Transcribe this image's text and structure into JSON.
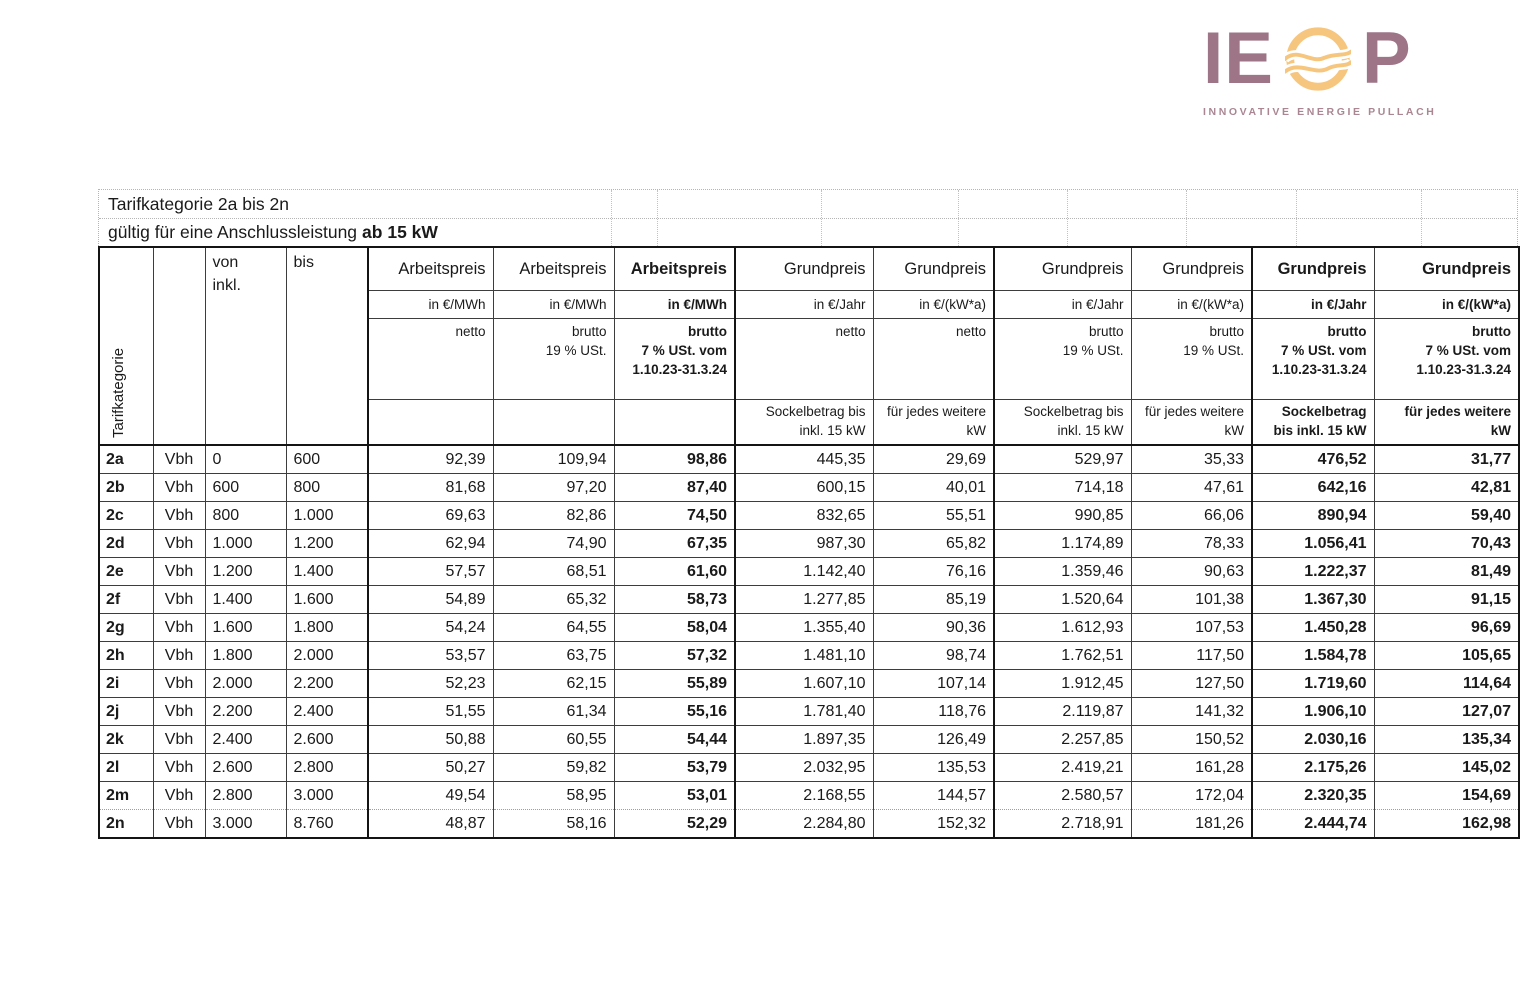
{
  "logo": {
    "text_left": "IE",
    "text_right": "P",
    "subtitle": "INNOVATIVE ENERGIE PULLACH",
    "brand_mauve": "#9e7587",
    "accent_orange": "#f6c67f"
  },
  "titles": {
    "line1": "Tarifkategorie 2a bis 2n",
    "line2_prefix": "gültig für eine Anschlussleistung",
    "line2_bold": "ab 15 kW"
  },
  "table": {
    "corner_label": "Tarifkategorie",
    "von_header": "von\ninkl.",
    "bis_header": "bis",
    "columns": [
      {
        "title": "Arbeitspreis",
        "unit": "in €/MWh",
        "tax": "netto",
        "note": "",
        "bold": false,
        "group_start": true
      },
      {
        "title": "Arbeitspreis",
        "unit": "in €/MWh",
        "tax": "brutto\n19 % USt.",
        "note": "",
        "bold": false,
        "group_start": false
      },
      {
        "title": "Arbeitspreis",
        "unit": "in €/MWh",
        "tax": "brutto\n7 % USt. vom\n1.10.23-31.3.24",
        "note": "",
        "bold": true,
        "group_start": false
      },
      {
        "title": "Grundpreis",
        "unit": "in €/Jahr",
        "tax": "netto",
        "note": "Sockelbetrag bis inkl. 15 kW",
        "bold": false,
        "group_start": true
      },
      {
        "title": "Grundpreis",
        "unit": "in €/(kW*a)",
        "tax": "netto",
        "note": "für jedes weitere kW",
        "bold": false,
        "group_start": false
      },
      {
        "title": "Grundpreis",
        "unit": "in €/Jahr",
        "tax": "brutto\n19 % USt.",
        "note": "Sockelbetrag bis inkl. 15 kW",
        "bold": false,
        "group_start": true
      },
      {
        "title": "Grundpreis",
        "unit": "in €/(kW*a)",
        "tax": "brutto\n19 % USt.",
        "note": "für jedes weitere kW",
        "bold": false,
        "group_start": false
      },
      {
        "title": "Grundpreis",
        "unit": "in €/Jahr",
        "tax": "brutto\n7 % USt. vom\n1.10.23-31.3.24",
        "note": "Sockelbetrag bis inkl. 15 kW",
        "bold": true,
        "group_start": true
      },
      {
        "title": "Grundpreis",
        "unit": "in €/(kW*a)",
        "tax": "brutto\n7 % USt. vom\n1.10.23-31.3.24",
        "note": "für jedes weitere kW",
        "bold": true,
        "group_start": false
      }
    ],
    "rows": [
      {
        "key": "2a",
        "unit": "Vbh",
        "von": "0",
        "bis": "600",
        "values": [
          "92,39",
          "109,94",
          "98,86",
          "445,35",
          "29,69",
          "529,97",
          "35,33",
          "476,52",
          "31,77"
        ]
      },
      {
        "key": "2b",
        "unit": "Vbh",
        "von": "600",
        "bis": "800",
        "values": [
          "81,68",
          "97,20",
          "87,40",
          "600,15",
          "40,01",
          "714,18",
          "47,61",
          "642,16",
          "42,81"
        ]
      },
      {
        "key": "2c",
        "unit": "Vbh",
        "von": "800",
        "bis": "1.000",
        "values": [
          "69,63",
          "82,86",
          "74,50",
          "832,65",
          "55,51",
          "990,85",
          "66,06",
          "890,94",
          "59,40"
        ]
      },
      {
        "key": "2d",
        "unit": "Vbh",
        "von": "1.000",
        "bis": "1.200",
        "values": [
          "62,94",
          "74,90",
          "67,35",
          "987,30",
          "65,82",
          "1.174,89",
          "78,33",
          "1.056,41",
          "70,43"
        ]
      },
      {
        "key": "2e",
        "unit": "Vbh",
        "von": "1.200",
        "bis": "1.400",
        "values": [
          "57,57",
          "68,51",
          "61,60",
          "1.142,40",
          "76,16",
          "1.359,46",
          "90,63",
          "1.222,37",
          "81,49"
        ]
      },
      {
        "key": "2f",
        "unit": "Vbh",
        "von": "1.400",
        "bis": "1.600",
        "values": [
          "54,89",
          "65,32",
          "58,73",
          "1.277,85",
          "85,19",
          "1.520,64",
          "101,38",
          "1.367,30",
          "91,15"
        ]
      },
      {
        "key": "2g",
        "unit": "Vbh",
        "von": "1.600",
        "bis": "1.800",
        "values": [
          "54,24",
          "64,55",
          "58,04",
          "1.355,40",
          "90,36",
          "1.612,93",
          "107,53",
          "1.450,28",
          "96,69"
        ]
      },
      {
        "key": "2h",
        "unit": "Vbh",
        "von": "1.800",
        "bis": "2.000",
        "values": [
          "53,57",
          "63,75",
          "57,32",
          "1.481,10",
          "98,74",
          "1.762,51",
          "117,50",
          "1.584,78",
          "105,65"
        ]
      },
      {
        "key": "2i",
        "unit": "Vbh",
        "von": "2.000",
        "bis": "2.200",
        "values": [
          "52,23",
          "62,15",
          "55,89",
          "1.607,10",
          "107,14",
          "1.912,45",
          "127,50",
          "1.719,60",
          "114,64"
        ]
      },
      {
        "key": "2j",
        "unit": "Vbh",
        "von": "2.200",
        "bis": "2.400",
        "values": [
          "51,55",
          "61,34",
          "55,16",
          "1.781,40",
          "118,76",
          "2.119,87",
          "141,32",
          "1.906,10",
          "127,07"
        ]
      },
      {
        "key": "2k",
        "unit": "Vbh",
        "von": "2.400",
        "bis": "2.600",
        "values": [
          "50,88",
          "60,55",
          "54,44",
          "1.897,35",
          "126,49",
          "2.257,85",
          "150,52",
          "2.030,16",
          "135,34"
        ]
      },
      {
        "key": "2l",
        "unit": "Vbh",
        "von": "2.600",
        "bis": "2.800",
        "values": [
          "50,27",
          "59,82",
          "53,79",
          "2.032,95",
          "135,53",
          "2.419,21",
          "161,28",
          "2.175,26",
          "145,02"
        ]
      },
      {
        "key": "2m",
        "unit": "Vbh",
        "von": "2.800",
        "bis": "3.000",
        "values": [
          "49,54",
          "58,95",
          "53,01",
          "2.168,55",
          "144,57",
          "2.580,57",
          "172,04",
          "2.320,35",
          "154,69"
        ]
      },
      {
        "key": "2n",
        "unit": "Vbh",
        "von": "3.000",
        "bis": "8.760",
        "values": [
          "48,87",
          "58,16",
          "52,29",
          "2.284,80",
          "152,32",
          "2.718,91",
          "181,26",
          "2.444,74",
          "162,98"
        ]
      }
    ]
  }
}
